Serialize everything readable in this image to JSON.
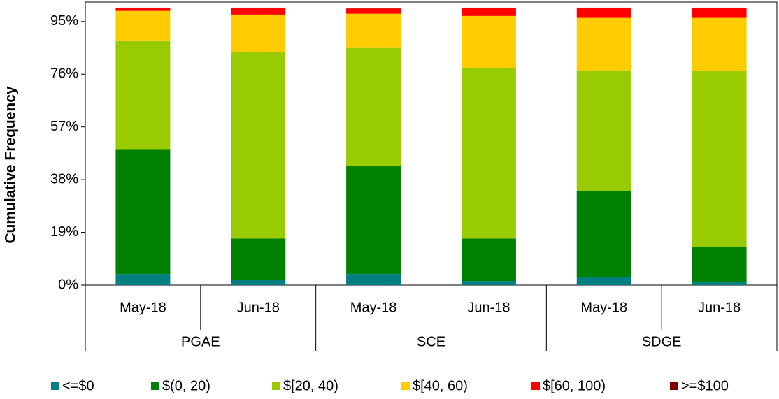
{
  "chart_data": {
    "type": "stacked_bar",
    "y_label": "Cumulative Frequency",
    "categories": [
      "May-18",
      "Jun-18",
      "May-18",
      "Jun-18",
      "May-18",
      "Jun-18"
    ],
    "category_groups": [
      "PGAE",
      "SCE",
      "SDGE"
    ],
    "series": [
      {
        "name": "<=$0",
        "color": "#008080",
        "values": [
          4.0,
          1.8,
          4.0,
          1.5,
          3.0,
          1.0
        ]
      },
      {
        "name": "$(0, 20)",
        "color": "#008000",
        "values": [
          45.0,
          15.0,
          39.0,
          15.3,
          30.9,
          12.6
        ]
      },
      {
        "name": "$[20, 40)",
        "color": "#99cc00",
        "values": [
          39.2,
          67.1,
          42.7,
          61.4,
          43.5,
          63.6
        ]
      },
      {
        "name": "$[40, 60)",
        "color": "#ffcc00",
        "values": [
          10.6,
          13.6,
          12.1,
          18.8,
          18.9,
          19.1
        ]
      },
      {
        "name": "$[60, 100)",
        "color": "#ff0000",
        "values": [
          1.0,
          2.5,
          1.9,
          3.0,
          3.5,
          3.7
        ]
      },
      {
        "name": ">=$100",
        "color": "#800000",
        "values": [
          0.2,
          0,
          0.2,
          0,
          0.2,
          0
        ]
      }
    ],
    "ylim": [
      0,
      102
    ],
    "yticks": [
      {
        "value": 0,
        "label": "0%"
      },
      {
        "value": 19,
        "label": "19%"
      },
      {
        "value": 38,
        "label": "38%"
      },
      {
        "value": 57,
        "label": "57%"
      },
      {
        "value": 76,
        "label": "76%"
      },
      {
        "value": 95,
        "label": "95%"
      }
    ],
    "grid": false
  }
}
